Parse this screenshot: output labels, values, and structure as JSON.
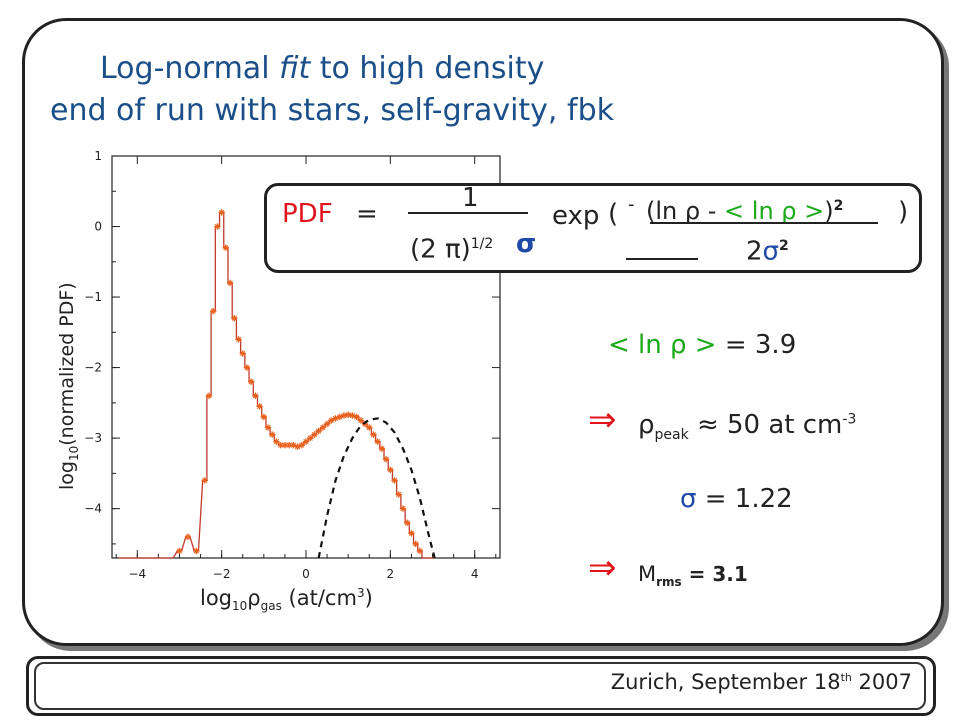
{
  "title": {
    "line1_pre": "Log-normal ",
    "line1_fit": "fit",
    "line1_post": " to high density",
    "line2": "end of run with stars, self-gravity, fbk"
  },
  "formula": {
    "pdf": "PDF",
    "equals": "=",
    "numerator_one": "1",
    "denom_pre": "(2 π)",
    "denom_exp": "1/2",
    "sigma": "σ",
    "exp": "exp",
    "open_paren": "(",
    "minus": "-",
    "inner_num_pre": "(ln ρ -",
    "inner_mean": "< ln ρ >",
    "inner_close": ")",
    "inner_sq": "2",
    "close_paren": ")",
    "den_two": "2",
    "den_sigma": "σ",
    "den_sq": "2"
  },
  "results": {
    "mean_label": "< ln ρ >",
    "mean_value": "= 3.9",
    "implies": "⇒",
    "rho": "ρ",
    "peak_sub": "peak",
    "peak_value": "≈ 50 at cm",
    "peak_exp": "-3",
    "sigma_label": "σ",
    "sigma_value": "= 1.22",
    "mach_M": "M",
    "mach_sub": "rms",
    "mach_value": "= 3.1"
  },
  "footer": {
    "text_pre": "Zurich,  September 18",
    "text_sup": "th",
    "text_post": " 2007"
  },
  "colors": {
    "title": "#1a4f8a",
    "red": "#e0141c",
    "blue": "#1f4aa8",
    "green": "#1aaa1a",
    "histogram": "#c0392b",
    "markers": "#e8621e",
    "fit": "#111111"
  },
  "chart_data": {
    "type": "line",
    "xlabel_pre": "log",
    "xlabel_sub": "10",
    "xlabel_rho": "ρ",
    "xlabel_rho_sub": "gas",
    "xlabel_post": " (at/cm",
    "xlabel_sup": "3",
    "xlabel_end": ")",
    "ylabel_pre": "log",
    "ylabel_sub": "10",
    "ylabel_post": "(normalized PDF)",
    "xlim": [
      -4.6,
      4.6
    ],
    "ylim": [
      -4.7,
      1.0
    ],
    "xticks": [
      -4,
      -2,
      0,
      2,
      4
    ],
    "yticks": [
      1,
      0,
      -1,
      -2,
      -3,
      -4
    ],
    "grid": false,
    "series": [
      {
        "kind": "histogram",
        "x": [
          -4.4,
          -4.2,
          -4.0,
          -3.8,
          -3.6,
          -3.4,
          -3.2,
          -3.0,
          -2.8,
          -2.6,
          -2.4,
          -2.3,
          -2.2,
          -2.1,
          -2.0,
          -1.9,
          -1.8,
          -1.7,
          -1.6,
          -1.5,
          -1.4,
          -1.3,
          -1.2,
          -1.1,
          -1.0,
          -0.9,
          -0.8,
          -0.7,
          -0.6,
          -0.5,
          -0.4,
          -0.3,
          -0.2,
          -0.1,
          0.0,
          0.1,
          0.2,
          0.3,
          0.4,
          0.5,
          0.6,
          0.7,
          0.8,
          0.9,
          1.0,
          1.1,
          1.2,
          1.3,
          1.4,
          1.5,
          1.6,
          1.7,
          1.8,
          1.9,
          2.0,
          2.1,
          2.2,
          2.3,
          2.4,
          2.5,
          2.6,
          2.7,
          2.8,
          2.9,
          3.0
        ],
        "y": [
          -4.7,
          -4.7,
          -4.7,
          -4.7,
          -4.7,
          -4.7,
          -4.7,
          -4.6,
          -4.4,
          -4.6,
          -3.6,
          -2.4,
          -1.2,
          0.0,
          0.2,
          -0.3,
          -0.8,
          -1.3,
          -1.6,
          -1.8,
          -2.0,
          -2.2,
          -2.4,
          -2.55,
          -2.7,
          -2.85,
          -2.95,
          -3.05,
          -3.1,
          -3.1,
          -3.1,
          -3.1,
          -3.12,
          -3.1,
          -3.05,
          -3.0,
          -2.95,
          -2.9,
          -2.85,
          -2.8,
          -2.75,
          -2.72,
          -2.7,
          -2.68,
          -2.67,
          -2.68,
          -2.7,
          -2.75,
          -2.8,
          -2.85,
          -2.95,
          -3.05,
          -3.15,
          -3.3,
          -3.45,
          -3.6,
          -3.8,
          -4.0,
          -4.2,
          -4.35,
          -4.5,
          -4.6,
          -4.7,
          -4.7,
          -4.7
        ]
      },
      {
        "kind": "lognormal-fit",
        "x": [
          0.3,
          0.5,
          0.7,
          0.9,
          1.1,
          1.3,
          1.5,
          1.7,
          1.9,
          2.1,
          2.3,
          2.5,
          2.7,
          2.9,
          3.05
        ],
        "y": [
          -4.7,
          -4.1,
          -3.6,
          -3.25,
          -3.0,
          -2.82,
          -2.74,
          -2.72,
          -2.78,
          -2.92,
          -3.15,
          -3.45,
          -3.85,
          -4.35,
          -4.7
        ]
      }
    ]
  }
}
